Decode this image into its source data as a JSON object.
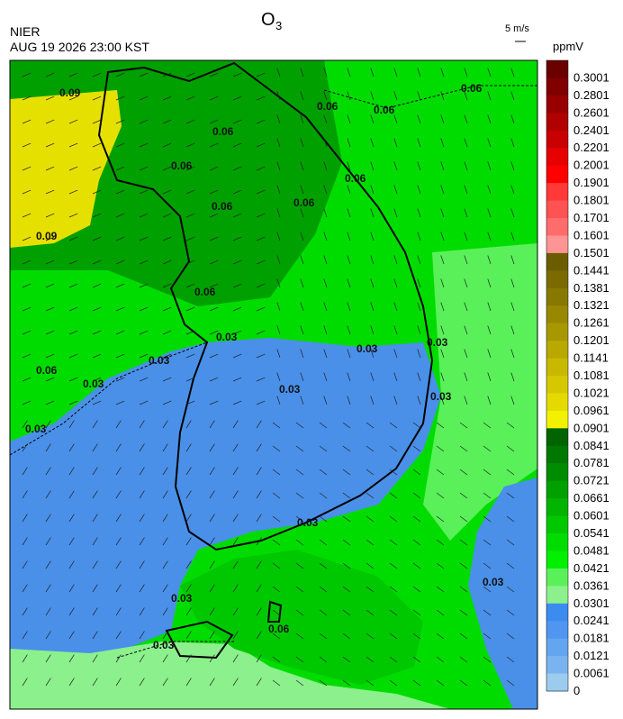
{
  "header": {
    "title": {
      "text": "O",
      "subscript": "3"
    },
    "source": "NIER",
    "timestamp": "AUG 19 2026 23:00 KST",
    "wind_scale": "5 m/s"
  },
  "legend": {
    "unit": "ppmV",
    "entries": [
      {
        "label": "0.3001",
        "color": "#6b0000"
      },
      {
        "label": "0.2801",
        "color": "#800000"
      },
      {
        "label": "0.2601",
        "color": "#980000"
      },
      {
        "label": "0.2401",
        "color": "#b00000"
      },
      {
        "label": "0.2201",
        "color": "#c80000"
      },
      {
        "label": "0.2001",
        "color": "#e60000"
      },
      {
        "label": "0.1901",
        "color": "#ff0000"
      },
      {
        "label": "0.1801",
        "color": "#ff3838"
      },
      {
        "label": "0.1701",
        "color": "#ff5252"
      },
      {
        "label": "0.1601",
        "color": "#ff6c6c"
      },
      {
        "label": "0.1501",
        "color": "#ff9494"
      },
      {
        "label": "0.1441",
        "color": "#6b5c00"
      },
      {
        "label": "0.1381",
        "color": "#7a6a00"
      },
      {
        "label": "0.1321",
        "color": "#877800"
      },
      {
        "label": "0.1261",
        "color": "#988800"
      },
      {
        "label": "0.1201",
        "color": "#a89800"
      },
      {
        "label": "0.1141",
        "color": "#b8a800"
      },
      {
        "label": "0.1081",
        "color": "#c8b800"
      },
      {
        "label": "0.1021",
        "color": "#d6c800"
      },
      {
        "label": "0.0961",
        "color": "#e4da00"
      },
      {
        "label": "0.0901",
        "color": "#f2f200"
      },
      {
        "label": "0.0841",
        "color": "#006400"
      },
      {
        "label": "0.0781",
        "color": "#007800"
      },
      {
        "label": "0.0721",
        "color": "#008c00"
      },
      {
        "label": "0.0661",
        "color": "#00a000"
      },
      {
        "label": "0.0601",
        "color": "#00b400"
      },
      {
        "label": "0.0541",
        "color": "#00c800"
      },
      {
        "label": "0.0481",
        "color": "#00dc00"
      },
      {
        "label": "0.0421",
        "color": "#00f000"
      },
      {
        "label": "0.0361",
        "color": "#5af05a"
      },
      {
        "label": "0.0301",
        "color": "#8cf08c"
      },
      {
        "label": "0.0241",
        "color": "#3c8cf0"
      },
      {
        "label": "0.0181",
        "color": "#5096f0"
      },
      {
        "label": "0.0121",
        "color": "#64a5f0"
      },
      {
        "label": "0.0061",
        "color": "#7ab4f0"
      },
      {
        "label": "0",
        "color": "#9ccbee"
      }
    ]
  },
  "map": {
    "contour_labels": [
      "0.09",
      "0.06",
      "0.06",
      "0.06",
      "0.06",
      "0.06",
      "0.06",
      "0.06",
      "0.06",
      "0.09",
      "0.06",
      "0.03",
      "0.06",
      "0.03",
      "0.03",
      "0.03",
      "0.03",
      "0.03",
      "0.03",
      "0.03",
      "0.03",
      "0.03",
      "0.06",
      "0.03",
      "0.03"
    ]
  }
}
